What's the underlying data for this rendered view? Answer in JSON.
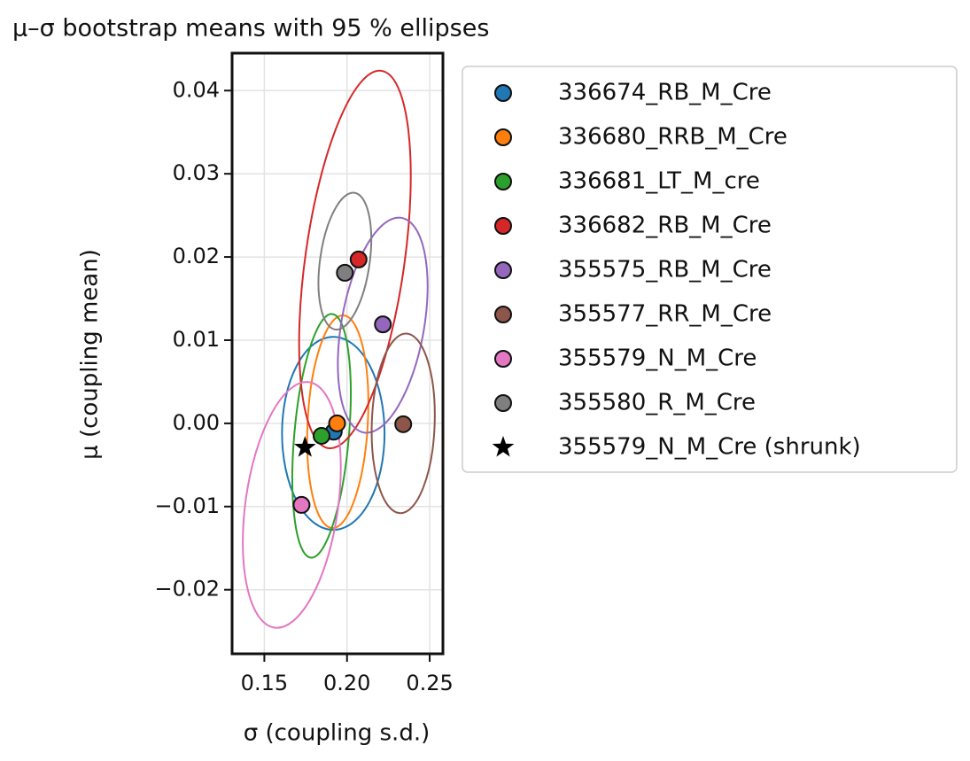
{
  "chart_data": {
    "type": "scatter",
    "title": "μ–σ bootstrap means with 95 % ellipses",
    "x_label": "σ (coupling s.d.)",
    "y_label": "μ (coupling mean)",
    "xlim": [
      0.1305,
      0.258
    ],
    "ylim": [
      -0.0277,
      0.0445
    ],
    "xticks": [
      0.15,
      {
        "value": 0.2,
        "label": "0.20"
      },
      0.25
    ],
    "yticks": [
      {
        "value": -0.02,
        "label": "−0.02"
      },
      {
        "value": -0.01,
        "label": "−0.01"
      },
      {
        "value": 0,
        "label": "0.00"
      },
      0.01,
      0.02,
      0.03,
      0.04
    ],
    "grid": true,
    "legend": "outside right",
    "series": [
      {
        "name": "336674_RB_M_Cre",
        "color": "#1f77b4",
        "x": 0.192,
        "y": -0.001,
        "ellipse": {
          "cx": 0.1917,
          "cy": -0.0012,
          "rx": 0.031,
          "ry": 0.0116,
          "angle": 0
        }
      },
      {
        "name": "336680_RRB_M_Cre",
        "color": "#ff7f0e",
        "x": 0.194,
        "y": 0.0,
        "ellipse": {
          "cx": 0.1944,
          "cy": 0.0002,
          "rx": 0.0182,
          "ry": 0.0128,
          "angle": 3
        }
      },
      {
        "name": "336681_LT_M_cre",
        "color": "#2ca02c",
        "x": 0.1846,
        "y": -0.0015,
        "ellipse": {
          "cx": 0.1846,
          "cy": -0.0015,
          "rx": 0.0165,
          "ry": 0.0147,
          "angle": 5
        }
      },
      {
        "name": "336682_RB_M_Cre",
        "color": "#d62728",
        "x": 0.207,
        "y": 0.0197,
        "ellipse": {
          "cx": 0.2048,
          "cy": 0.0197,
          "rx": 0.03,
          "ry": 0.0229,
          "angle": 8
        }
      },
      {
        "name": "355575_RB_M_Cre",
        "color": "#9467bd",
        "x": 0.2217,
        "y": 0.0119,
        "ellipse": {
          "cx": 0.2216,
          "cy": 0.0118,
          "rx": 0.025,
          "ry": 0.0131,
          "angle": 10
        }
      },
      {
        "name": "355577_RR_M_Cre",
        "color": "#8c564b",
        "x": 0.234,
        "y": -0.0001,
        "ellipse": {
          "cx": 0.234,
          "cy": 0.0,
          "rx": 0.019,
          "ry": 0.0108,
          "angle": 2
        }
      },
      {
        "name": "355579_N_M_Cre",
        "color": "#e377c2",
        "x": 0.1725,
        "y": -0.0098,
        "ellipse": {
          "cx": 0.1666,
          "cy": -0.0098,
          "rx": 0.028,
          "ry": 0.0149,
          "angle": 8
        }
      },
      {
        "name": "355580_R_M_Cre",
        "color": "#7f7f7f",
        "x": 0.1987,
        "y": 0.0181,
        "ellipse": {
          "cx": 0.1987,
          "cy": 0.0195,
          "rx": 0.015,
          "ry": 0.0083,
          "angle": 8
        }
      },
      {
        "name": "355579_N_M_Cre (shrunk)",
        "color": "#000000",
        "marker": "star",
        "x": 0.1746,
        "y": -0.0029
      }
    ]
  }
}
